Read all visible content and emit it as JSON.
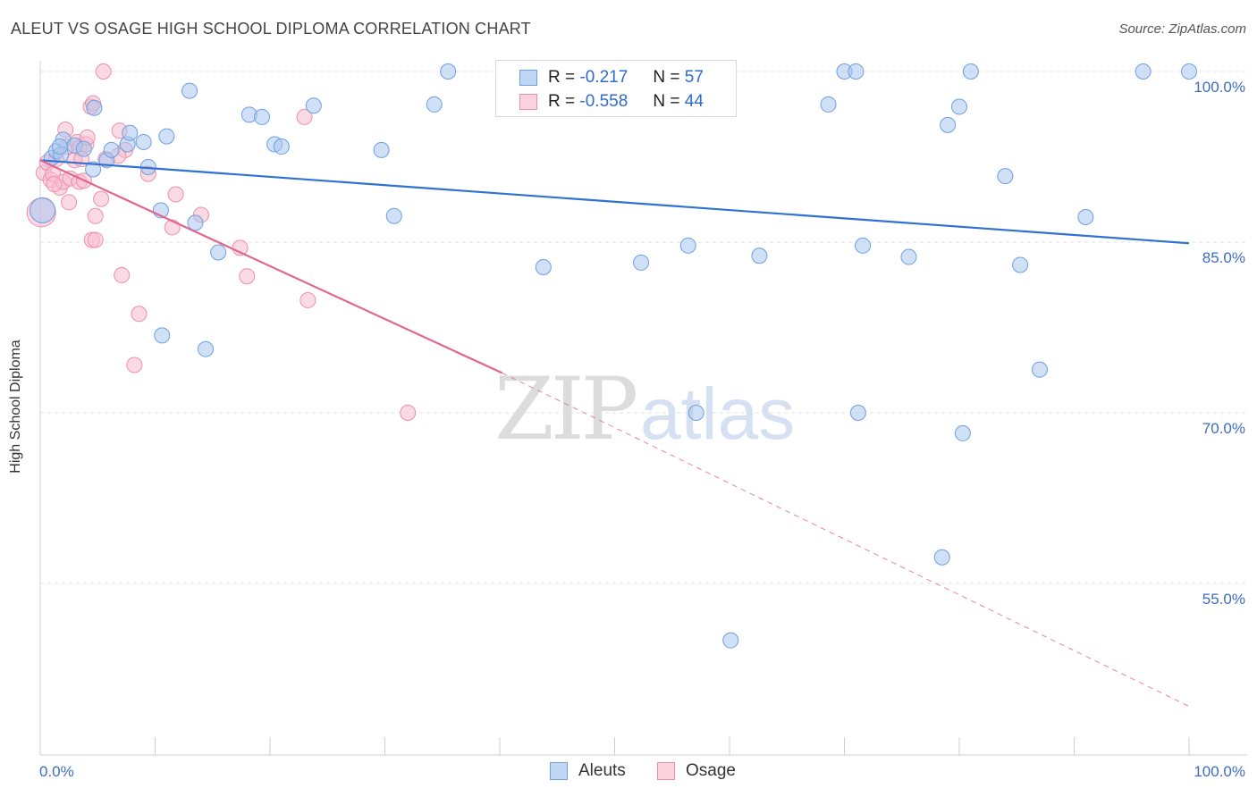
{
  "title": "ALEUT VS OSAGE HIGH SCHOOL DIPLOMA CORRELATION CHART",
  "source": "Source: ZipAtlas.com",
  "watermark": {
    "part1": "ZIP",
    "part2": "atlas"
  },
  "legend": {
    "r_label": "R =",
    "n_label": "N =",
    "rows": [
      {
        "r": "-0.217",
        "n": "57"
      },
      {
        "r": "-0.558",
        "n": "44"
      }
    ]
  },
  "colors": {
    "aleut_fill": "#a9c7ef",
    "aleut_stroke": "#6e9fe0",
    "aleut_line": "#2f72d0",
    "osage_fill": "#f7bccd",
    "osage_stroke": "#ec8fab",
    "osage_line": "#e2668f"
  },
  "chart_data": {
    "type": "scatter",
    "title": "ALEUT VS OSAGE HIGH SCHOOL DIPLOMA CORRELATION CHART",
    "xlabel": "",
    "ylabel": "High School Diploma",
    "x_tick_labels": [
      "0.0%",
      "100.0%"
    ],
    "y_tick_labels": [
      "100.0%",
      "85.0%",
      "70.0%",
      "55.0%"
    ],
    "y_ticks": [
      100,
      85,
      70,
      55
    ],
    "xlim": [
      0,
      100
    ],
    "ylim": [
      43.5,
      102
    ],
    "grid": true,
    "legend_position": "top-center",
    "series": [
      {
        "name": "Aleuts",
        "trend": {
          "x0": 0,
          "y0": 92.2,
          "x1": 100,
          "y1": 84.9
        },
        "points": [
          [
            1.0,
            92.4
          ],
          [
            1.4,
            93.0
          ],
          [
            2.0,
            94.0
          ],
          [
            1.8,
            92.7
          ],
          [
            3.0,
            93.5
          ],
          [
            3.8,
            93.2
          ],
          [
            4.6,
            91.4
          ],
          [
            4.7,
            96.8
          ],
          [
            5.8,
            92.2
          ],
          [
            6.2,
            93.1
          ],
          [
            7.6,
            93.6
          ],
          [
            7.8,
            94.6
          ],
          [
            9.0,
            93.8
          ],
          [
            9.4,
            91.6
          ],
          [
            10.5,
            87.8
          ],
          [
            11.0,
            94.3
          ],
          [
            13.0,
            98.3
          ],
          [
            13.5,
            86.7
          ],
          [
            10.6,
            76.8
          ],
          [
            14.4,
            75.6
          ],
          [
            15.5,
            84.1
          ],
          [
            18.2,
            96.2
          ],
          [
            19.3,
            96.0
          ],
          [
            20.4,
            93.6
          ],
          [
            21.0,
            93.4
          ],
          [
            23.8,
            97.0
          ],
          [
            29.7,
            93.1
          ],
          [
            30.8,
            87.3
          ],
          [
            34.3,
            97.1
          ],
          [
            35.5,
            100.0
          ],
          [
            43.8,
            82.8
          ],
          [
            47.0,
            100.0
          ],
          [
            52.3,
            83.2
          ],
          [
            55.5,
            100.0
          ],
          [
            56.4,
            84.7
          ],
          [
            57.1,
            70.0
          ],
          [
            62.6,
            83.8
          ],
          [
            60.1,
            50.0
          ],
          [
            68.6,
            97.1
          ],
          [
            70.0,
            100.0
          ],
          [
            71.0,
            100.0
          ],
          [
            71.2,
            70.0
          ],
          [
            71.6,
            84.7
          ],
          [
            75.6,
            83.7
          ],
          [
            78.5,
            57.3
          ],
          [
            79.0,
            95.3
          ],
          [
            80.0,
            96.9
          ],
          [
            80.3,
            68.2
          ],
          [
            81.0,
            100.0
          ],
          [
            84.0,
            90.8
          ],
          [
            85.3,
            83.0
          ],
          [
            87.0,
            73.8
          ],
          [
            91.0,
            87.2
          ],
          [
            96.0,
            100.0
          ],
          [
            100.0,
            100.0
          ],
          [
            0.2,
            87.8
          ],
          [
            1.7,
            93.4
          ]
        ]
      },
      {
        "name": "Osage",
        "trend": {
          "x0": 0,
          "y0": 92.2,
          "x1": 40.2,
          "y1": 73.5,
          "dash_x1": 100,
          "dash_y1": 44.2
        },
        "points": [
          [
            0.3,
            91.1
          ],
          [
            0.6,
            92.0
          ],
          [
            0.9,
            90.5
          ],
          [
            1.1,
            91.0
          ],
          [
            1.4,
            92.3
          ],
          [
            1.7,
            89.8
          ],
          [
            2.0,
            90.3
          ],
          [
            2.3,
            93.4
          ],
          [
            2.2,
            94.9
          ],
          [
            2.6,
            90.6
          ],
          [
            2.5,
            88.5
          ],
          [
            3.0,
            92.2
          ],
          [
            3.2,
            93.8
          ],
          [
            3.4,
            93.3
          ],
          [
            3.6,
            92.3
          ],
          [
            3.4,
            90.3
          ],
          [
            3.8,
            90.4
          ],
          [
            4.0,
            93.6
          ],
          [
            4.1,
            94.2
          ],
          [
            4.4,
            96.9
          ],
          [
            4.5,
            85.2
          ],
          [
            4.6,
            97.2
          ],
          [
            4.8,
            87.3
          ],
          [
            4.8,
            85.2
          ],
          [
            5.3,
            88.8
          ],
          [
            5.5,
            100.0
          ],
          [
            5.7,
            92.3
          ],
          [
            6.9,
            94.8
          ],
          [
            7.1,
            82.1
          ],
          [
            7.4,
            93.1
          ],
          [
            8.2,
            74.2
          ],
          [
            8.6,
            78.7
          ],
          [
            9.4,
            91.0
          ],
          [
            11.5,
            86.3
          ],
          [
            11.8,
            89.2
          ],
          [
            14.0,
            87.4
          ],
          [
            17.4,
            84.5
          ],
          [
            18.0,
            82.0
          ],
          [
            23.0,
            96.0
          ],
          [
            23.3,
            79.9
          ],
          [
            32.0,
            70.0
          ],
          [
            0.1,
            87.6
          ],
          [
            1.2,
            90.1
          ],
          [
            6.8,
            92.6
          ]
        ]
      }
    ]
  },
  "bottom_legend": [
    "Aleuts",
    "Osage"
  ]
}
